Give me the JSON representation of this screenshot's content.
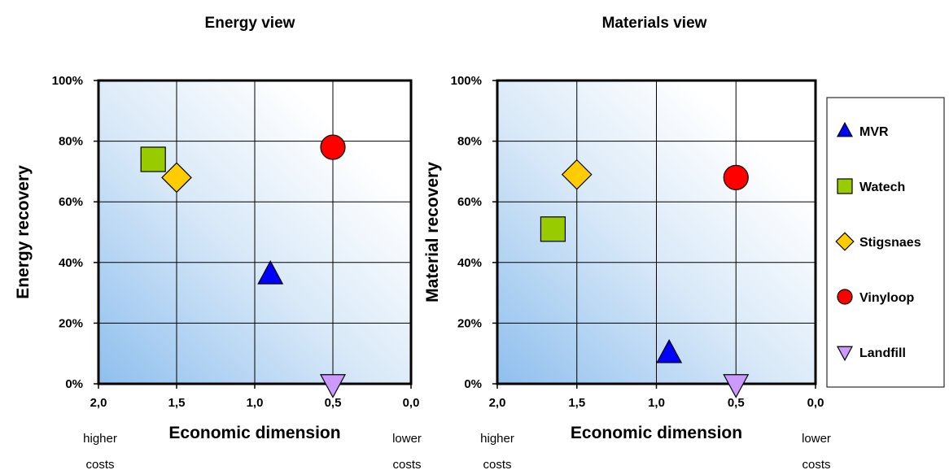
{
  "chart_data": [
    {
      "type": "scatter",
      "title": "Energy view",
      "xlabel": "Economic  dimension",
      "ylabel": "Energy recovery",
      "x_reversed": true,
      "xlim": [
        0.0,
        2.0
      ],
      "ylim": [
        0,
        100
      ],
      "x_ticks": [
        "2,0",
        "1,5",
        "1,0",
        "0,5",
        "0,0"
      ],
      "y_ticks": [
        "0%",
        "20%",
        "40%",
        "60%",
        "80%",
        "100%"
      ],
      "x_left_note": [
        "higher",
        "costs"
      ],
      "x_right_note": [
        "lower",
        "costs"
      ],
      "grid": true,
      "points": [
        {
          "name": "MVR",
          "x": 0.9,
          "y": 36
        },
        {
          "name": "Watech",
          "x": 1.65,
          "y": 74
        },
        {
          "name": "Stigsnaes",
          "x": 1.5,
          "y": 68
        },
        {
          "name": "Vinyloop",
          "x": 0.5,
          "y": 78
        },
        {
          "name": "Landfill",
          "x": 0.5,
          "y": 0
        }
      ]
    },
    {
      "type": "scatter",
      "title": "Materials view",
      "xlabel": "Economic  dimension",
      "ylabel": "Material recovery",
      "x_reversed": true,
      "xlim": [
        0.0,
        2.0
      ],
      "ylim": [
        0,
        100
      ],
      "x_ticks": [
        "2,0",
        "1,5",
        "1,0",
        "0,5",
        "0,0"
      ],
      "y_ticks": [
        "0%",
        "20%",
        "40%",
        "60%",
        "80%",
        "100%"
      ],
      "x_left_note": [
        "higher",
        "costs"
      ],
      "x_right_note": [
        "lower",
        "costs"
      ],
      "grid": true,
      "points": [
        {
          "name": "MVR",
          "x": 0.92,
          "y": 10
        },
        {
          "name": "Watech",
          "x": 1.65,
          "y": 51
        },
        {
          "name": "Stigsnaes",
          "x": 1.5,
          "y": 69
        },
        {
          "name": "Vinyloop",
          "x": 0.5,
          "y": 68
        },
        {
          "name": "Landfill",
          "x": 0.5,
          "y": 0
        }
      ]
    }
  ],
  "legend": {
    "placement": "right",
    "items": [
      {
        "name": "MVR",
        "marker": "triangle-up",
        "color": "#0000ff"
      },
      {
        "name": "Watech",
        "marker": "square",
        "color": "#99cc00"
      },
      {
        "name": "Stigsnaes",
        "marker": "diamond",
        "color": "#ffcc00"
      },
      {
        "name": "Vinyloop",
        "marker": "circle",
        "color": "#ff0000"
      },
      {
        "name": "Landfill",
        "marker": "triangle-down",
        "color": "#cc99ff"
      }
    ]
  }
}
